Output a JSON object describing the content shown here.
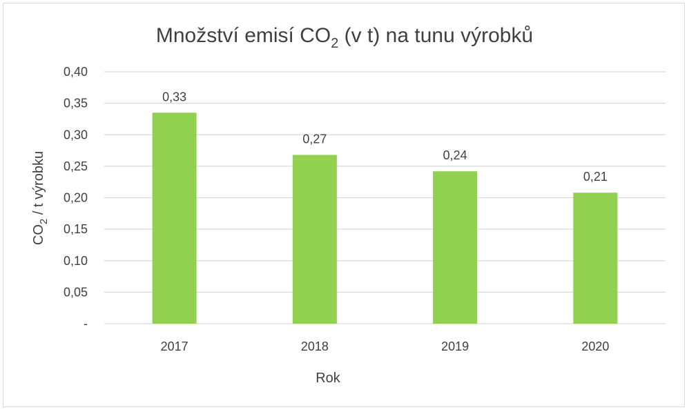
{
  "chart_data": {
    "type": "bar",
    "title": "Množství emisí CO",
    "title_sub": "2",
    "title_rest": " (v t) na tunu výrobků",
    "ylabel": "CO",
    "ylabel_sub": "2",
    "ylabel_rest": " / t výrobku",
    "xlabel": "Rok",
    "categories": [
      "2017",
      "2018",
      "2019",
      "2020"
    ],
    "values": [
      0.335,
      0.268,
      0.242,
      0.208
    ],
    "data_labels": [
      "0,33",
      "0,27",
      "0,24",
      "0,21"
    ],
    "ylim": [
      0,
      0.4
    ],
    "yticks": [
      0,
      0.05,
      0.1,
      0.15,
      0.2,
      0.25,
      0.3,
      0.35,
      0.4
    ],
    "ytick_labels": [
      "-",
      "0,05",
      "0,10",
      "0,15",
      "0,20",
      "0,25",
      "0,30",
      "0,35",
      "0,40"
    ],
    "grid": true,
    "bar_color": "#92d050",
    "grid_color": "#d9d9d9",
    "text_color": "#404040"
  }
}
